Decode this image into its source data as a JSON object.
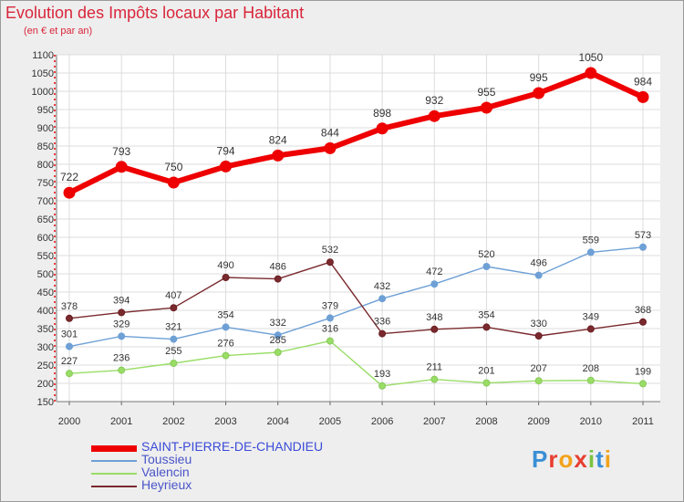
{
  "title": "Evolution des Impôts locaux par Habitant",
  "subtitle": "(en € et par an)",
  "logo": {
    "letters": [
      "P",
      "r",
      "o",
      "x",
      "i",
      "t",
      "i"
    ],
    "colors": [
      "#3a8fd6",
      "#e83e30",
      "#f2a31b",
      "#e83e30",
      "#7cc341",
      "#3a8fd6",
      "#f2a31b"
    ]
  },
  "chart_data": {
    "type": "line",
    "x": [
      "2000",
      "2001",
      "2002",
      "2003",
      "2004",
      "2005",
      "2006",
      "2007",
      "2008",
      "2009",
      "2010",
      "2011"
    ],
    "ylim": [
      150,
      1100
    ],
    "yticks": [
      150,
      200,
      250,
      300,
      350,
      400,
      450,
      500,
      550,
      600,
      650,
      700,
      750,
      800,
      850,
      900,
      950,
      1000,
      1050,
      1100
    ],
    "grid": true,
    "legend_position": "bottom-left",
    "series": [
      {
        "name": "SAINT-PIERRE-DE-CHANDIEU",
        "color": "#ee0000",
        "values": [
          722,
          793,
          750,
          794,
          824,
          844,
          898,
          932,
          955,
          995,
          1050,
          984
        ]
      },
      {
        "name": "Toussieu",
        "color": "#6ea0d6",
        "values": [
          301,
          329,
          321,
          354,
          332,
          379,
          432,
          472,
          520,
          496,
          559,
          573
        ]
      },
      {
        "name": "Valencin",
        "color": "#99dd66",
        "values": [
          227,
          236,
          255,
          276,
          285,
          316,
          193,
          211,
          201,
          207,
          208,
          199
        ]
      },
      {
        "name": "Heyrieux",
        "color": "#7a2a2e",
        "values": [
          378,
          394,
          407,
          490,
          486,
          532,
          336,
          348,
          354,
          330,
          349,
          368
        ]
      }
    ]
  }
}
